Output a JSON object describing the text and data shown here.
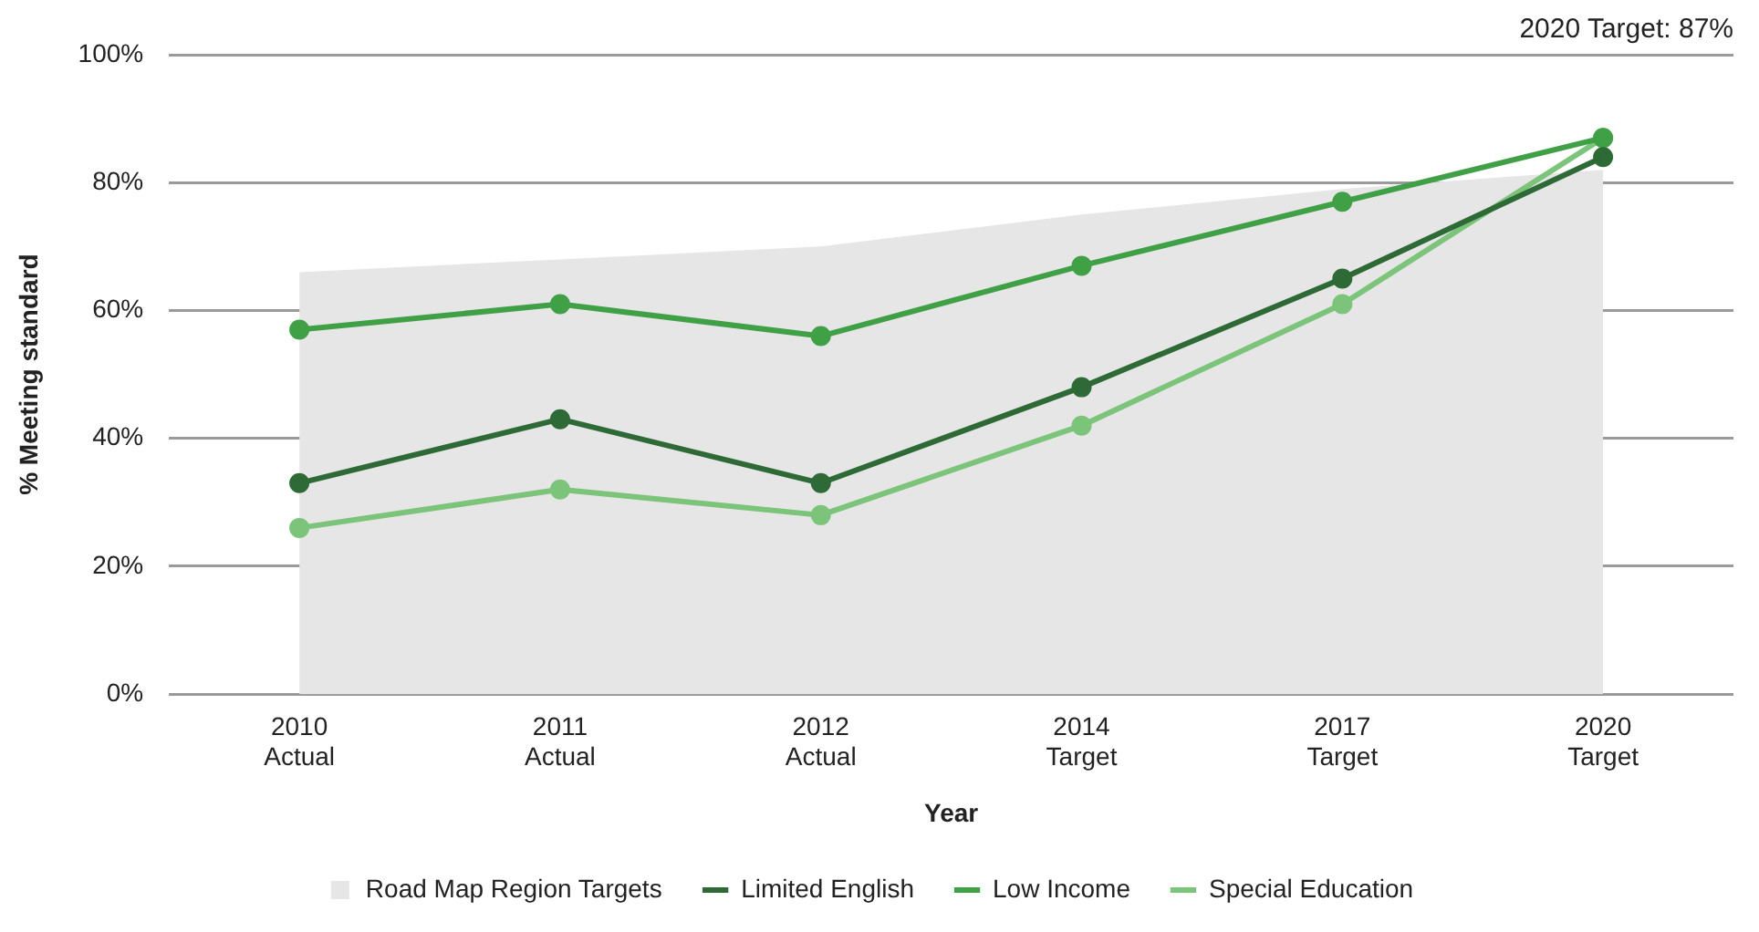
{
  "chart_data": {
    "type": "line",
    "xlabel": "Year",
    "ylabel": "% Meeting standard",
    "categories": [
      "2010\nActual",
      "2011\nActual",
      "2012\nActual",
      "2014\nTarget",
      "2017\nTarget",
      "2020\nTarget"
    ],
    "series": [
      {
        "name": "Road Map Region Targets",
        "type": "area",
        "marker": "none",
        "color": "#e6e6e6",
        "values": [
          66,
          68,
          70,
          75,
          79,
          82
        ]
      },
      {
        "name": "Limited English",
        "color": "#2d6a36",
        "values": [
          33,
          43,
          33,
          48,
          65,
          84
        ]
      },
      {
        "name": "Low Income",
        "color": "#3fa046",
        "values": [
          57,
          61,
          56,
          67,
          77,
          87
        ]
      },
      {
        "name": "Special Education",
        "color": "#7bc47a",
        "values": [
          26,
          32,
          28,
          42,
          61,
          87
        ]
      }
    ],
    "ylim": [
      0,
      100
    ],
    "yticks": [
      {
        "value": 0,
        "label": "0%"
      },
      {
        "value": 20,
        "label": "20%"
      },
      {
        "value": 40,
        "label": "40%"
      },
      {
        "value": 60,
        "label": "60%"
      },
      {
        "value": 80,
        "label": "80%"
      },
      {
        "value": 100,
        "label": "100%"
      }
    ],
    "annotations": [
      "2020 Target: 87%"
    ],
    "grid": "y",
    "legend": "bottom",
    "marker": "circle",
    "line_style": "solid"
  }
}
